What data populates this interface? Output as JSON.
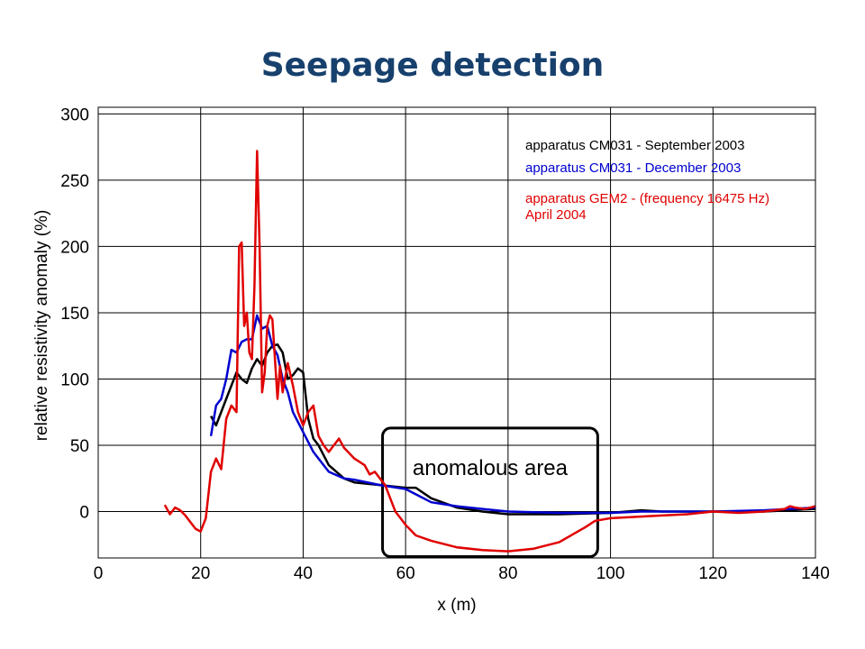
{
  "chart_data": {
    "type": "line",
    "title": "Seepage detection",
    "xlabel": "x (m)",
    "ylabel": "relative resistivity anomaly (%)",
    "xlim": [
      0,
      140
    ],
    "ylim": [
      -35,
      305
    ],
    "x_ticks": [
      0,
      20,
      40,
      60,
      80,
      100,
      120,
      140
    ],
    "y_ticks": [
      0,
      50,
      100,
      150,
      200,
      250,
      300
    ],
    "grid": true,
    "legend_position": "top-right",
    "annotation": {
      "text": "anomalous area",
      "x_range": [
        55.5,
        97.5
      ],
      "y_range": [
        -34,
        63
      ]
    },
    "series": [
      {
        "name": "apparatus CM031 - September 2003",
        "color": "#000000",
        "x": [
          22,
          23,
          25,
          27,
          28,
          29,
          30,
          31,
          32,
          33,
          34,
          35,
          36,
          37,
          38,
          39,
          40,
          41,
          42,
          43,
          45,
          48,
          50,
          55,
          60,
          62,
          65,
          70,
          75,
          80,
          90,
          100,
          106,
          110,
          120,
          130,
          140
        ],
        "y": [
          72,
          65,
          85,
          105,
          100,
          97,
          108,
          115,
          110,
          120,
          125,
          126,
          120,
          100,
          103,
          108,
          105,
          70,
          55,
          50,
          35,
          25,
          22,
          20,
          18,
          18,
          10,
          3,
          0,
          -2,
          -2,
          -1,
          1,
          0,
          0,
          0,
          2
        ]
      },
      {
        "name": "apparatus CM031 - December 2003",
        "color": "#0000d0",
        "x": [
          22,
          23,
          24,
          25,
          26,
          27,
          28,
          29,
          30,
          31,
          32,
          33,
          34,
          35,
          36,
          37,
          38,
          40,
          42,
          45,
          48,
          50,
          55,
          60,
          62,
          65,
          70,
          75,
          80,
          90,
          100,
          106,
          110,
          120,
          130,
          140
        ],
        "y": [
          57,
          80,
          85,
          100,
          122,
          120,
          128,
          130,
          130,
          148,
          138,
          140,
          125,
          118,
          100,
          90,
          75,
          60,
          45,
          30,
          25,
          24,
          20,
          17,
          13,
          7,
          4,
          2,
          0,
          -1,
          -1,
          0,
          0,
          0,
          1,
          3
        ]
      },
      {
        "name": "apparatus GEM2 - (frequency 16475 Hz) April 2004",
        "color": "#e00000",
        "x": [
          13,
          14,
          15,
          16,
          17,
          18,
          19,
          20,
          21,
          22,
          23,
          24,
          25,
          26,
          27,
          27.5,
          28,
          28.5,
          29,
          29.5,
          30,
          30.5,
          31,
          31.5,
          32,
          32.5,
          33,
          33.5,
          34,
          35,
          35.5,
          36,
          37,
          38,
          39,
          40,
          41,
          42,
          43,
          44,
          45,
          46,
          47,
          48,
          50,
          52,
          53,
          54,
          55,
          56,
          57,
          58,
          59,
          60,
          62,
          65,
          70,
          75,
          80,
          85,
          90,
          95,
          97,
          100,
          105,
          110,
          115,
          120,
          125,
          130,
          134,
          135,
          136,
          138,
          140
        ],
        "y": [
          5,
          -2,
          3,
          1,
          -3,
          -8,
          -13,
          -15,
          -5,
          30,
          40,
          32,
          70,
          80,
          75,
          200,
          203,
          140,
          150,
          120,
          115,
          170,
          272,
          200,
          90,
          105,
          140,
          148,
          145,
          85,
          110,
          90,
          112,
          95,
          75,
          65,
          75,
          80,
          57,
          50,
          45,
          50,
          55,
          48,
          40,
          35,
          28,
          30,
          25,
          20,
          10,
          0,
          -5,
          -10,
          -18,
          -22,
          -27,
          -29,
          -30,
          -28,
          -23,
          -12,
          -7,
          -5,
          -4,
          -3,
          -2,
          0,
          -1,
          0,
          2,
          4,
          3,
          2,
          4
        ]
      }
    ]
  }
}
